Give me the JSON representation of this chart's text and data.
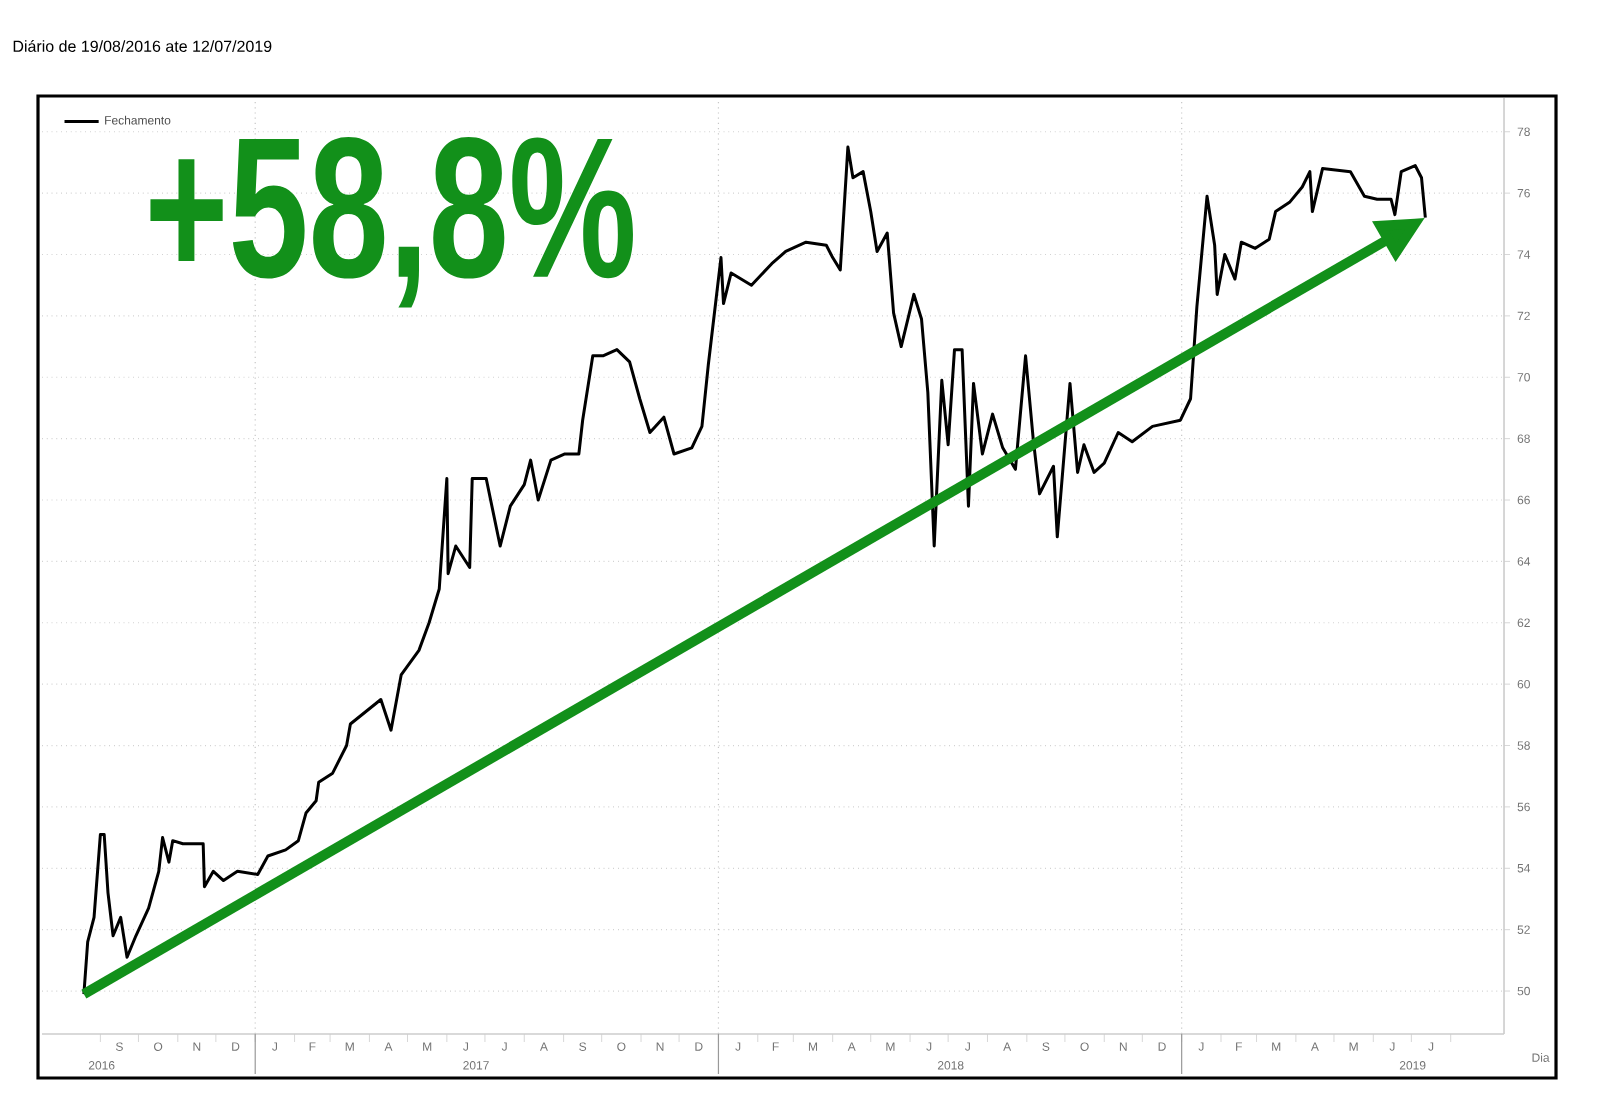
{
  "chart_data": {
    "type": "line",
    "subtitle": "Diário de 19/08/2016 ate 12/07/2019",
    "xlabel": "Dia",
    "annotations": [
      "+58,8%",
      "S",
      "O",
      "N",
      "D",
      "J",
      "F",
      "M",
      "A",
      "M",
      "J",
      "J",
      "A",
      "S",
      "O",
      "N",
      "D",
      "J",
      "F",
      "M",
      "A",
      "M",
      "J",
      "J",
      "A",
      "S",
      "O",
      "N",
      "D",
      "J",
      "F",
      "M",
      "A",
      "M",
      "J",
      "J"
    ],
    "xlim": [
      "2016-07-17",
      "2019-09-12"
    ],
    "ylim": [
      48.6,
      79.1
    ],
    "yticks": [
      50,
      52,
      54,
      56,
      58,
      60,
      62,
      64,
      66,
      68,
      70,
      72,
      74,
      76,
      78
    ],
    "xticks": [
      {
        "value": "2016-09-01",
        "label": null
      },
      {
        "value": "2016-10-01",
        "label": null
      },
      {
        "value": "2016-11-01",
        "label": null
      },
      {
        "value": "2016-12-01",
        "label": null
      },
      {
        "value": "2017-01-01",
        "label": null
      },
      {
        "value": "2017-02-01",
        "label": null
      },
      {
        "value": "2017-03-01",
        "label": null
      },
      {
        "value": "2017-04-01",
        "label": null
      },
      {
        "value": "2017-05-01",
        "label": null
      },
      {
        "value": "2017-06-01",
        "label": null
      },
      {
        "value": "2017-07-01",
        "label": null
      },
      {
        "value": "2017-08-01",
        "label": null
      },
      {
        "value": "2017-09-01",
        "label": null
      },
      {
        "value": "2017-10-01",
        "label": null
      },
      {
        "value": "2017-11-01",
        "label": null
      },
      {
        "value": "2017-12-01",
        "label": null
      },
      {
        "value": "2018-01-01",
        "label": null
      },
      {
        "value": "2018-02-01",
        "label": null
      },
      {
        "value": "2018-03-01",
        "label": null
      },
      {
        "value": "2018-04-01",
        "label": null
      },
      {
        "value": "2018-05-01",
        "label": null
      },
      {
        "value": "2018-06-01",
        "label": null
      },
      {
        "value": "2018-07-01",
        "label": null
      },
      {
        "value": "2018-08-01",
        "label": null
      },
      {
        "value": "2018-09-01",
        "label": null
      },
      {
        "value": "2018-10-01",
        "label": null
      },
      {
        "value": "2018-11-01",
        "label": null
      },
      {
        "value": "2018-12-01",
        "label": null
      },
      {
        "value": "2019-01-01",
        "label": null
      },
      {
        "value": "2019-02-01",
        "label": null
      },
      {
        "value": "2019-03-01",
        "label": null
      },
      {
        "value": "2019-04-01",
        "label": null
      },
      {
        "value": "2019-05-01",
        "label": null
      },
      {
        "value": "2019-06-01",
        "label": null
      },
      {
        "value": "2019-07-01",
        "label": null
      },
      {
        "value": "2019-08-01",
        "label": null
      },
      {
        "value": "2016-09-02",
        "label": "2016"
      },
      {
        "value": "2017-06-24",
        "label": "2017"
      },
      {
        "value": "2018-07-03",
        "label": "2018"
      },
      {
        "value": "2019-07-02",
        "label": "2019"
      }
    ],
    "grid": true,
    "legend": "top left",
    "series": [
      {
        "name": "Fechamento",
        "color": "#000000",
        "x": [
          "2016-08-19",
          "2016-08-22",
          "2016-08-27",
          "2016-09-01",
          "2016-09-04",
          "2016-09-07",
          "2016-09-11",
          "2016-09-17",
          "2016-09-22",
          "2016-09-29",
          "2016-10-09",
          "2016-10-17",
          "2016-10-20",
          "2016-10-25",
          "2016-10-28",
          "2016-11-05",
          "2016-11-21",
          "2016-11-22",
          "2016-11-29",
          "2016-12-07",
          "2016-12-18",
          "2017-01-03",
          "2017-01-11",
          "2017-01-25",
          "2017-02-04",
          "2017-02-10",
          "2017-02-18",
          "2017-02-20",
          "2017-03-03",
          "2017-03-14",
          "2017-03-17",
          "2017-04-10",
          "2017-04-18",
          "2017-04-26",
          "2017-05-10",
          "2017-05-18",
          "2017-05-26",
          "2017-06-01",
          "2017-06-02",
          "2017-06-08",
          "2017-06-19",
          "2017-06-21",
          "2017-07-02",
          "2017-07-13",
          "2017-07-21",
          "2017-08-01",
          "2017-08-06",
          "2017-08-12",
          "2017-08-22",
          "2017-09-02",
          "2017-09-13",
          "2017-09-16",
          "2017-09-24",
          "2017-10-02",
          "2017-10-13",
          "2017-10-23",
          "2017-10-31",
          "2017-11-08",
          "2017-11-19",
          "2017-11-27",
          "2017-12-11",
          "2017-12-19",
          "2017-12-24",
          "2018-01-03",
          "2018-01-05",
          "2018-01-11",
          "2018-01-27",
          "2018-02-12",
          "2018-02-23",
          "2018-03-11",
          "2018-03-27",
          "2018-04-01",
          "2018-04-07",
          "2018-04-13",
          "2018-04-17",
          "2018-04-25",
          "2018-05-01",
          "2018-05-06",
          "2018-05-14",
          "2018-05-19",
          "2018-05-25",
          "2018-06-04",
          "2018-06-10",
          "2018-06-15",
          "2018-06-20",
          "2018-06-26",
          "2018-07-01",
          "2018-07-06",
          "2018-07-12",
          "2018-07-17",
          "2018-07-21",
          "2018-07-28",
          "2018-08-05",
          "2018-08-13",
          "2018-08-23",
          "2018-08-31",
          "2018-09-06",
          "2018-09-11",
          "2018-09-22",
          "2018-09-25",
          "2018-10-05",
          "2018-10-11",
          "2018-10-16",
          "2018-10-24",
          "2018-11-01",
          "2018-11-12",
          "2018-11-23",
          "2018-12-09",
          "2018-12-31",
          "2019-01-08",
          "2019-01-13",
          "2019-01-21",
          "2019-01-27",
          "2019-01-29",
          "2019-02-04",
          "2019-02-12",
          "2019-02-17",
          "2019-02-28",
          "2019-03-11",
          "2019-03-16",
          "2019-03-27",
          "2019-04-06",
          "2019-04-12",
          "2019-04-14",
          "2019-04-22",
          "2019-05-14",
          "2019-05-25",
          "2019-06-04",
          "2019-06-15",
          "2019-06-18",
          "2019-06-23",
          "2019-07-04",
          "2019-07-09",
          "2019-07-12"
        ],
        "values": [
          49.9,
          51.6,
          52.4,
          55.1,
          55.1,
          53.2,
          51.8,
          52.4,
          51.1,
          51.8,
          52.7,
          53.9,
          55.0,
          54.2,
          54.9,
          54.8,
          54.8,
          53.4,
          53.9,
          53.6,
          53.9,
          53.8,
          54.4,
          54.6,
          54.9,
          55.8,
          56.2,
          56.8,
          57.1,
          58.0,
          58.7,
          59.5,
          58.5,
          60.3,
          61.1,
          62.0,
          63.1,
          66.7,
          63.6,
          64.5,
          63.8,
          66.7,
          66.7,
          64.5,
          65.8,
          66.5,
          67.3,
          66.0,
          67.3,
          67.5,
          67.5,
          68.6,
          70.7,
          70.7,
          70.9,
          70.5,
          69.3,
          68.2,
          68.7,
          67.5,
          67.7,
          68.4,
          70.4,
          73.9,
          72.4,
          73.4,
          73.0,
          73.7,
          74.1,
          74.4,
          74.3,
          73.9,
          73.5,
          77.5,
          76.5,
          76.7,
          75.4,
          74.1,
          74.7,
          72.1,
          71.0,
          72.7,
          71.9,
          69.5,
          64.5,
          69.9,
          67.8,
          70.9,
          70.9,
          65.8,
          69.8,
          67.5,
          68.8,
          67.7,
          67.0,
          70.7,
          68.0,
          66.2,
          67.1,
          64.8,
          69.8,
          66.9,
          67.8,
          66.9,
          67.2,
          68.2,
          67.9,
          68.4,
          68.6,
          69.3,
          72.3,
          75.9,
          74.3,
          72.7,
          74.0,
          73.2,
          74.4,
          74.2,
          74.5,
          75.4,
          75.7,
          76.2,
          76.7,
          75.4,
          76.8,
          76.7,
          75.9,
          75.8,
          75.8,
          75.3,
          76.7,
          76.9,
          76.5,
          75.2
        ]
      }
    ]
  }
}
